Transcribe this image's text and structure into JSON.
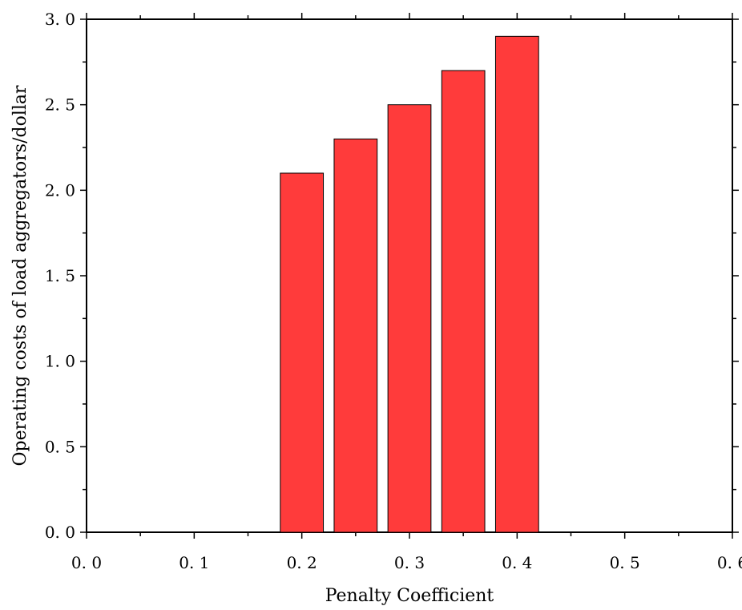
{
  "chart_data": {
    "type": "bar",
    "xlabel": "Penalty Coefficient",
    "ylabel": "Operating costs of load aggregators/dollar",
    "xlim": [
      0.0,
      0.6
    ],
    "ylim": [
      0.0,
      3.0
    ],
    "x_ticks": [
      "0. 0",
      "0. 1",
      "0. 2",
      "0. 3",
      "0. 4",
      "0. 5",
      "0. 6"
    ],
    "y_ticks": [
      "0. 0",
      "0. 5",
      "1. 0",
      "1. 5",
      "2. 0",
      "2. 5",
      "3. 0"
    ],
    "x": [
      0.2,
      0.25,
      0.3,
      0.35,
      0.4
    ],
    "values": [
      2.1,
      2.3,
      2.5,
      2.7,
      2.9
    ],
    "bar_width": 0.04,
    "bar_color": "#ff3b3b",
    "grid": false
  }
}
